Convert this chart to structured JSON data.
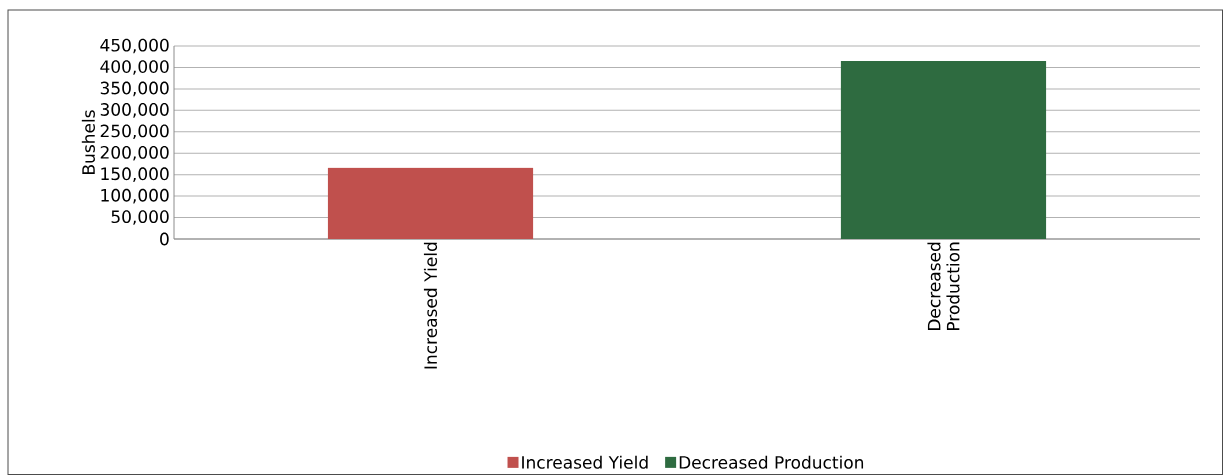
{
  "chart_data": {
    "type": "bar",
    "ylabel": "Bushels",
    "categories": [
      "Increased Yield",
      "Decreased Production"
    ],
    "series": [
      {
        "name": "Increased Yield",
        "color": "#c0504d",
        "values": [
          166000,
          null
        ]
      },
      {
        "name": "Decreased Production",
        "color": "#2e6b40",
        "values": [
          null,
          415000
        ]
      }
    ],
    "ylim": [
      0,
      450000
    ],
    "yticks": [
      0,
      {
        "value": 50000,
        "label": "50,000"
      },
      {
        "value": 100000,
        "label": "100,000"
      },
      {
        "value": 150000,
        "label": "150,000"
      },
      {
        "value": 200000,
        "label": "200,000"
      },
      {
        "value": 250000,
        "label": "250,000"
      },
      {
        "value": 300000,
        "label": "300,000"
      },
      {
        "value": 350000,
        "label": "350,000"
      },
      {
        "value": 400000,
        "label": "400,000"
      },
      {
        "value": 450000,
        "label": "450,000"
      }
    ],
    "grid": "y",
    "legend": "bottom"
  }
}
